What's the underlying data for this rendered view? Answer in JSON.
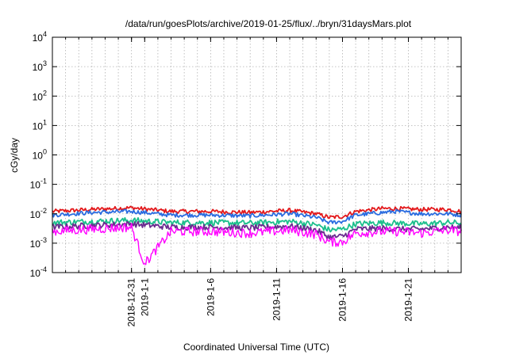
{
  "chart_data": {
    "type": "line",
    "title": "/data/run/goesPlots/archive/2019-01-25/flux/../bryn/31daysMars.plot",
    "xlabel": "Coordinated Universal Time (UTC)",
    "ylabel": "cGy/day",
    "yscale": "log",
    "ylim": [
      0.0001,
      10000
    ],
    "y_ticks": [
      {
        "base": "10",
        "exp": "-4",
        "value": 0.0001
      },
      {
        "base": "10",
        "exp": "-3",
        "value": 0.001
      },
      {
        "base": "10",
        "exp": "-2",
        "value": 0.01
      },
      {
        "base": "10",
        "exp": "-1",
        "value": 0.1
      },
      {
        "base": "10",
        "exp": "0",
        "value": 1
      },
      {
        "base": "10",
        "exp": "1",
        "value": 10
      },
      {
        "base": "10",
        "exp": "2",
        "value": 100
      },
      {
        "base": "10",
        "exp": "3",
        "value": 1000
      },
      {
        "base": "10",
        "exp": "4",
        "value": 10000
      }
    ],
    "xlim": [
      "2018-12-25",
      "2019-01-25"
    ],
    "x_ticks": [
      "2018-12-31",
      "2019-1-1",
      "2019-1-6",
      "2019-1-11",
      "2019-1-16",
      "2019-1-21"
    ],
    "x_tick_dates": [
      "2018-12-31",
      "2019-01-01",
      "2019-01-06",
      "2019-01-11",
      "2019-01-16",
      "2019-01-21"
    ],
    "grid": true,
    "series": [
      {
        "color": "#e3181b",
        "x": [
          "2018-12-25",
          "2018-12-28",
          "2018-12-31",
          "2019-01-03",
          "2019-01-06",
          "2019-01-09",
          "2019-01-12",
          "2019-01-14",
          "2019-01-15",
          "2019-01-16",
          "2019-01-17",
          "2019-01-19",
          "2019-01-20",
          "2019-01-22",
          "2019-01-24",
          "2019-01-25"
        ],
        "values": [
          0.012,
          0.014,
          0.016,
          0.012,
          0.012,
          0.011,
          0.013,
          0.01,
          0.0075,
          0.008,
          0.012,
          0.015,
          0.015,
          0.014,
          0.014,
          0.012
        ]
      },
      {
        "color": "#2a6ce0",
        "x": [
          "2018-12-25",
          "2018-12-28",
          "2018-12-31",
          "2019-01-03",
          "2019-01-06",
          "2019-01-09",
          "2019-01-12",
          "2019-01-14",
          "2019-01-15",
          "2019-01-16",
          "2019-01-17",
          "2019-01-19",
          "2019-01-20",
          "2019-01-22",
          "2019-01-24",
          "2019-01-25"
        ],
        "values": [
          0.009,
          0.011,
          0.012,
          0.009,
          0.009,
          0.0085,
          0.01,
          0.0075,
          0.005,
          0.0055,
          0.009,
          0.011,
          0.012,
          0.01,
          0.01,
          0.009
        ]
      },
      {
        "color": "#1cbf8c",
        "x": [
          "2018-12-25",
          "2018-12-28",
          "2018-12-31",
          "2019-01-03",
          "2019-01-06",
          "2019-01-09",
          "2019-01-12",
          "2019-01-14",
          "2019-01-15",
          "2019-01-16",
          "2019-01-17",
          "2019-01-19",
          "2019-01-20",
          "2019-01-22",
          "2019-01-24",
          "2019-01-25"
        ],
        "values": [
          0.005,
          0.0055,
          0.006,
          0.005,
          0.005,
          0.0048,
          0.0055,
          0.0042,
          0.0028,
          0.003,
          0.0045,
          0.005,
          0.0048,
          0.0045,
          0.005,
          0.0048
        ]
      },
      {
        "color": "#6a2c8f",
        "x": [
          "2018-12-25",
          "2018-12-28",
          "2018-12-31",
          "2019-01-03",
          "2019-01-06",
          "2019-01-09",
          "2019-01-12",
          "2019-01-14",
          "2019-01-15",
          "2019-01-16",
          "2019-01-17",
          "2019-01-19",
          "2019-01-20",
          "2019-01-22",
          "2019-01-24",
          "2019-01-25"
        ],
        "values": [
          0.0035,
          0.004,
          0.0045,
          0.0035,
          0.0035,
          0.0033,
          0.0038,
          0.0028,
          0.0016,
          0.0017,
          0.003,
          0.0032,
          0.003,
          0.003,
          0.0035,
          0.0033
        ]
      },
      {
        "color": "#ff00ff",
        "x": [
          "2018-12-25",
          "2018-12-28",
          "2018-12-31",
          "2019-01-01",
          "2019-01-03",
          "2019-01-06",
          "2019-01-09",
          "2019-01-12",
          "2019-01-14",
          "2019-01-15",
          "2019-01-16",
          "2019-01-17",
          "2019-01-19",
          "2019-01-20",
          "2019-01-22",
          "2019-01-24",
          "2019-01-25"
        ],
        "values": [
          0.0025,
          0.003,
          0.0035,
          0.0002,
          0.0025,
          0.0025,
          0.0022,
          0.0028,
          0.002,
          0.0011,
          0.0011,
          0.0022,
          0.0025,
          0.0025,
          0.0022,
          0.0028,
          0.0025
        ]
      }
    ]
  }
}
